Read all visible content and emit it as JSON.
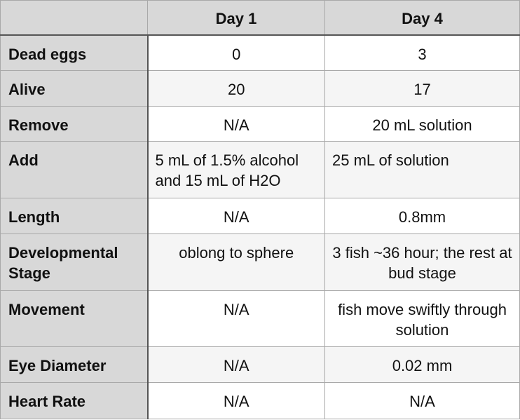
{
  "table": {
    "headers": [
      "",
      "Day 1",
      "Day 4"
    ],
    "rows": [
      {
        "label": "Dead eggs",
        "day1": "0",
        "day4": "3"
      },
      {
        "label": "Alive",
        "day1": "20",
        "day4": "17"
      },
      {
        "label": "Remove",
        "day1": "N/A",
        "day4": "20 mL solution"
      },
      {
        "label": "Add",
        "day1": "5 mL of 1.5% alcohol and 15 mL of H2O",
        "day4": "25 mL of solution"
      },
      {
        "label": "Length",
        "day1": "N/A",
        "day4": "0.8mm"
      },
      {
        "label": "Developmental Stage",
        "day1": "oblong to sphere",
        "day4": "3 fish ~36 hour; the rest at bud stage"
      },
      {
        "label": "Movement",
        "day1": "N/A",
        "day4": "fish move swiftly through solution"
      },
      {
        "label": "Eye Diameter",
        "day1": "N/A",
        "day4": "0.02 mm"
      },
      {
        "label": "Heart Rate",
        "day1": "N/A",
        "day4": "N/A"
      }
    ]
  }
}
